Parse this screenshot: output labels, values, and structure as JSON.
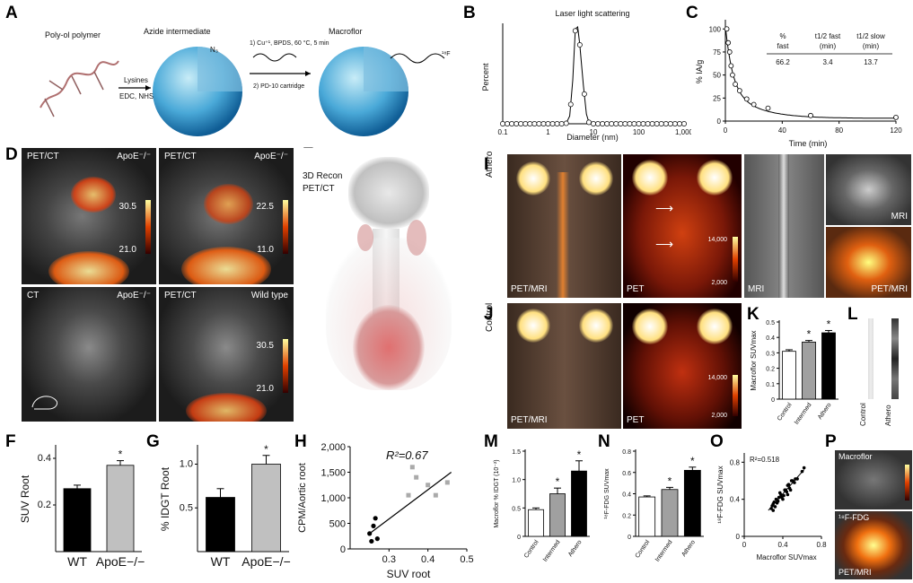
{
  "panels": {
    "A": {
      "label": "A",
      "polymer": "Poly-ol polymer",
      "lysines": "Lysines",
      "edc": "EDC, NHS",
      "azide": "Azide intermediate",
      "n3": "N₃",
      "step1": "1) Cu⁺¹, BPDS, 60 °C, 5 min",
      "step2": "2) PD-10 cartridge",
      "macroflor": "Macroflor",
      "f18": "¹⁸F"
    },
    "B": {
      "label": "B",
      "title": "Laser light scattering",
      "ylabel": "Percent",
      "xlabel": "Diameter (nm)",
      "xticks": [
        "0.1",
        "1",
        "10",
        "100",
        "1,000"
      ]
    },
    "C": {
      "label": "C",
      "ylabel": "% IA/g",
      "xlabel": "Time (min)",
      "xticks": [
        "0",
        "40",
        "80",
        "120"
      ],
      "yticks": [
        "0",
        "25",
        "50",
        "75",
        "100"
      ],
      "table": {
        "h1": "%",
        "h1b": "fast",
        "h2": "t1/2 fast",
        "h2b": "(min)",
        "h3": "t1/2 slow",
        "h3b": "(min)",
        "v1": "66.2",
        "v2": "3.4",
        "v3": "13.7"
      }
    },
    "D": {
      "label": "D",
      "img1_tl": "PET/CT",
      "img1_tr": "ApoE⁻/⁻",
      "img1_s1": "30.5",
      "img1_s2": "21.0",
      "img2_tl": "PET/CT",
      "img2_tr": "ApoE⁻/⁻",
      "img2_s1": "22.5",
      "img2_s2": "11.0",
      "img3_tl": "CT",
      "img3_tr": "ApoE⁻/⁻",
      "img4_tl": "PET/CT",
      "img4_tr": "Wild type",
      "img4_s1": "30.5",
      "img4_s2": "21.0"
    },
    "E": {
      "label": "E",
      "text1": "3D Recon",
      "text2": "PET/CT"
    },
    "I": {
      "label": "I",
      "side": "Athero",
      "i1": "PET/MRI",
      "i2": "PET",
      "i2_s1": "14,000",
      "i2_s2": "2,000",
      "i3": "MRI",
      "i4a": "MRI",
      "i4b": "PET/MRI"
    },
    "J": {
      "label": "J",
      "side": "Control",
      "j1": "PET/MRI",
      "j2": "PET",
      "j2_s1": "14,000",
      "j2_s2": "2,000"
    },
    "K": {
      "label": "K",
      "ylabel": "Macroflor SUVmax",
      "yticks": [
        "0",
        "0.1",
        "0.2",
        "0.3",
        "0.4",
        "0.5"
      ]
    },
    "L": {
      "label": "L",
      "c1": "Control",
      "c2": "Athero"
    },
    "F": {
      "label": "F",
      "ylabel": "SUV Root",
      "yticks": [
        "0.2",
        "0.4"
      ]
    },
    "G": {
      "label": "G",
      "ylabel": "% IDGT Root",
      "yticks": [
        "0.5",
        "1.0"
      ]
    },
    "H": {
      "label": "H",
      "ylabel": "CPM/Aortic root",
      "xlabel": "SUV root",
      "r2": "R²=0.67",
      "yticks": [
        "0",
        "500",
        "1,000",
        "1,500",
        "2,000"
      ],
      "xticks": [
        "0.3",
        "0.4",
        "0.5"
      ]
    },
    "M": {
      "label": "M",
      "ylabel": "Macroflor % IDGT (10⁻²)",
      "yticks": [
        "0",
        "0.5",
        "1.0",
        "1.5"
      ]
    },
    "N": {
      "label": "N",
      "ylabel": "¹⁸F-FDG SUVmax",
      "yticks": [
        "0",
        "0.2",
        "0.4",
        "0.6",
        "0.8"
      ]
    },
    "O": {
      "label": "O",
      "ylabel": "¹⁸F-FDG SUVmax",
      "xlabel": "Macroflor SUVmax",
      "r2": "R²=0.518",
      "yticks": [
        "0",
        "0.4",
        "0.8"
      ],
      "xticks": [
        "0",
        "0.4",
        "0.8"
      ]
    },
    "P": {
      "label": "P",
      "p1": "Macroflor",
      "p2": "¹⁸F-FDG",
      "p3": "PET/MRI"
    }
  },
  "chart_data": [
    {
      "id": "B",
      "type": "line",
      "xlabel": "Diameter (nm)",
      "ylabel": "Percent",
      "title": "Laser light scattering",
      "xscale": "log",
      "x": [
        0.1,
        0.2,
        0.5,
        1,
        2,
        2.5,
        3,
        3.5,
        4,
        4.5,
        5,
        6,
        7,
        8,
        10,
        20,
        50,
        100,
        1000
      ],
      "y": [
        0,
        0,
        0,
        0,
        0,
        0.3,
        8,
        45,
        98,
        100,
        82,
        40,
        10,
        1,
        0,
        0,
        0,
        0,
        0
      ]
    },
    {
      "id": "C",
      "type": "scatter",
      "xlabel": "Time (min)",
      "ylabel": "% IA/g",
      "xlim": [
        0,
        120
      ],
      "ylim": [
        0,
        110
      ],
      "x": [
        1,
        2,
        3,
        4,
        5,
        7,
        10,
        15,
        20,
        30,
        60,
        120
      ],
      "y": [
        100,
        85,
        75,
        60,
        50,
        40,
        33,
        24,
        18,
        14,
        6,
        4
      ]
    },
    {
      "id": "F",
      "type": "bar",
      "categories": [
        "WT",
        "ApoE−/−"
      ],
      "values": [
        0.27,
        0.37
      ],
      "errors": [
        0.015,
        0.02
      ],
      "ylim": [
        0,
        0.45
      ],
      "colors": [
        "#000000",
        "#c0c0c0"
      ]
    },
    {
      "id": "G",
      "type": "bar",
      "categories": [
        "WT",
        "ApoE−/−"
      ],
      "values": [
        0.62,
        1.0
      ],
      "errors": [
        0.1,
        0.1
      ],
      "ylim": [
        0,
        1.2
      ],
      "colors": [
        "#000000",
        "#c0c0c0"
      ]
    },
    {
      "id": "H",
      "type": "scatter",
      "xlabel": "SUV root",
      "ylabel": "CPM/Aortic root",
      "xlim": [
        0.2,
        0.5
      ],
      "ylim": [
        0,
        2000
      ],
      "series": [
        {
          "x": [
            0.25,
            0.26,
            0.255,
            0.265,
            0.27
          ],
          "y": [
            300,
            450,
            150,
            600,
            200
          ],
          "color": "#000000"
        },
        {
          "x": [
            0.35,
            0.37,
            0.4,
            0.42,
            0.45,
            0.36
          ],
          "y": [
            1050,
            1400,
            1250,
            1050,
            1300,
            1600
          ],
          "color": "#aaaaaa"
        }
      ]
    },
    {
      "id": "K",
      "type": "bar",
      "categories": [
        "Control",
        "Intermed",
        "Athero"
      ],
      "values": [
        0.31,
        0.37,
        0.43
      ],
      "errors": [
        0.01,
        0.01,
        0.015
      ],
      "ylim": [
        0,
        0.5
      ],
      "colors": [
        "#ffffff",
        "#a0a0a0",
        "#000000"
      ]
    },
    {
      "id": "M",
      "type": "bar",
      "categories": [
        "Control",
        "Intermed",
        "Athero"
      ],
      "values": [
        0.47,
        0.75,
        1.15
      ],
      "errors": [
        0.03,
        0.1,
        0.18
      ],
      "ylim": [
        0,
        1.5
      ],
      "colors": [
        "#ffffff",
        "#a0a0a0",
        "#000000"
      ]
    },
    {
      "id": "N",
      "type": "bar",
      "categories": [
        "Control",
        "Intermed",
        "Athero"
      ],
      "values": [
        0.37,
        0.44,
        0.62
      ],
      "errors": [
        0.01,
        0.02,
        0.03
      ],
      "ylim": [
        0,
        0.8
      ],
      "colors": [
        "#ffffff",
        "#a0a0a0",
        "#000000"
      ]
    },
    {
      "id": "O",
      "type": "scatter",
      "xlabel": "Macroflor SUVmax",
      "ylabel": "¹⁸F-FDG SUVmax",
      "xlim": [
        0,
        0.8
      ],
      "ylim": [
        0,
        0.9
      ],
      "x": [
        0.28,
        0.3,
        0.32,
        0.33,
        0.35,
        0.36,
        0.38,
        0.4,
        0.42,
        0.44,
        0.45,
        0.47,
        0.48,
        0.5,
        0.52,
        0.55,
        0.3,
        0.34,
        0.37,
        0.41,
        0.43,
        0.46,
        0.49,
        0.53,
        0.6,
        0.62,
        0.29,
        0.31,
        0.39,
        0.45
      ],
      "y": [
        0.3,
        0.35,
        0.32,
        0.4,
        0.38,
        0.42,
        0.45,
        0.4,
        0.5,
        0.48,
        0.55,
        0.52,
        0.5,
        0.6,
        0.58,
        0.62,
        0.28,
        0.36,
        0.47,
        0.44,
        0.5,
        0.56,
        0.6,
        0.62,
        0.7,
        0.74,
        0.33,
        0.37,
        0.42,
        0.45
      ]
    }
  ]
}
